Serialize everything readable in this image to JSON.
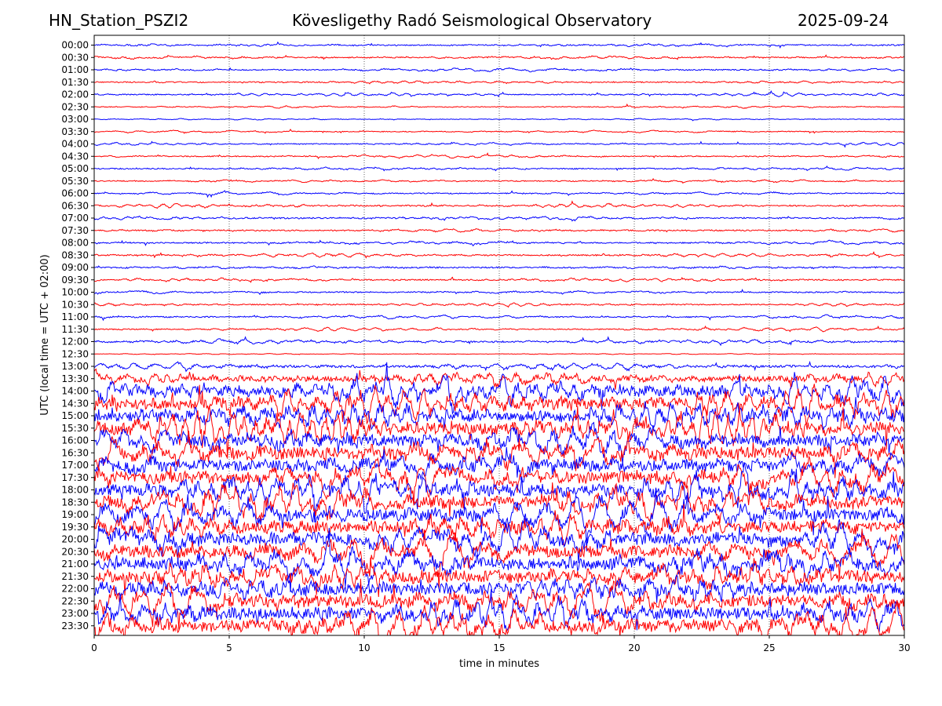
{
  "header": {
    "station": "HN_Station_PSZI2",
    "observatory": "Kövesligethy Radó Seismological Observatory",
    "date": "2025-09-24"
  },
  "chart_data": {
    "type": "line",
    "subtype": "helicorder",
    "xlabel": "time in minutes",
    "ylabel": "UTC (local time = UTC + 02:00)",
    "xlim": [
      0,
      30
    ],
    "x_ticks": [
      "0",
      "5",
      "10",
      "15",
      "20",
      "25",
      "30"
    ],
    "x_tick_values": [
      0,
      5,
      10,
      15,
      20,
      25,
      30
    ],
    "row_labels": [
      "00:00",
      "00:30",
      "01:00",
      "01:30",
      "02:00",
      "02:30",
      "03:00",
      "03:30",
      "04:00",
      "04:30",
      "05:00",
      "05:30",
      "06:00",
      "06:30",
      "07:00",
      "07:30",
      "08:00",
      "08:30",
      "09:00",
      "09:30",
      "10:00",
      "10:30",
      "11:00",
      "11:30",
      "12:00",
      "12:30",
      "13:00",
      "13:30",
      "14:00",
      "14:30",
      "15:00",
      "15:30",
      "16:00",
      "16:30",
      "17:00",
      "17:30",
      "18:00",
      "18:30",
      "19:00",
      "19:30",
      "20:00",
      "20:30",
      "21:00",
      "21:30",
      "22:00",
      "22:30",
      "23:00",
      "23:30"
    ],
    "trace_colors": [
      "#0000ff",
      "#ff0000"
    ],
    "relative_amplitude": [
      0.3,
      0.32,
      0.3,
      0.28,
      0.28,
      0.2,
      0.15,
      0.22,
      0.24,
      0.26,
      0.28,
      0.26,
      0.28,
      0.32,
      0.34,
      0.32,
      0.34,
      0.34,
      0.34,
      0.32,
      0.32,
      0.3,
      0.3,
      0.28,
      0.42,
      0.1,
      0.6,
      1.4,
      2.6,
      2.8,
      3.0,
      3.0,
      3.0,
      3.0,
      3.0,
      3.0,
      3.0,
      3.0,
      3.0,
      3.0,
      3.0,
      3.0,
      3.0,
      3.0,
      3.0,
      3.0,
      3.0,
      3.0
    ],
    "grid": "vertical dotted at each 5 minutes"
  }
}
